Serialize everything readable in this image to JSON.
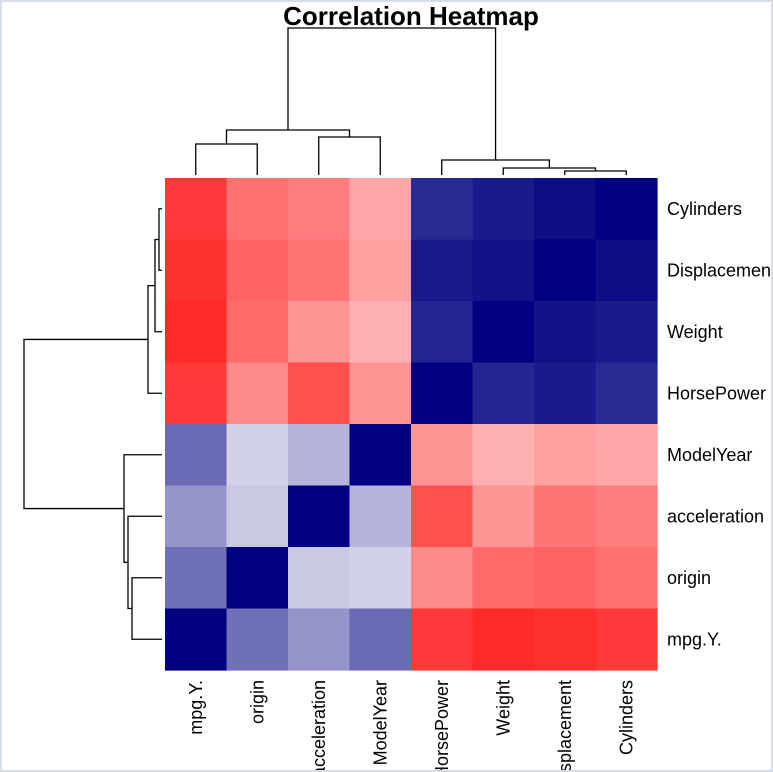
{
  "chart_data": {
    "type": "heatmap",
    "title": "Correlation Heatmap",
    "rows": [
      "Cylinders",
      "Displacement",
      "Weight",
      "HorsePower",
      "ModelYear",
      "acceleration",
      "origin",
      "mpg.Y."
    ],
    "columns": [
      "mpg.Y.",
      "origin",
      "acceleration",
      "ModelYear",
      "HorsePower",
      "Weight",
      "Displacement",
      "Cylinders"
    ],
    "values": [
      [
        -0.78,
        -0.56,
        -0.51,
        -0.35,
        0.84,
        0.9,
        0.95,
        1.0
      ],
      [
        -0.81,
        -0.61,
        -0.54,
        -0.37,
        0.9,
        0.93,
        1.0,
        0.95
      ],
      [
        -0.83,
        -0.58,
        -0.42,
        -0.31,
        0.86,
        1.0,
        0.93,
        0.9
      ],
      [
        -0.78,
        -0.46,
        -0.69,
        -0.42,
        1.0,
        0.86,
        0.9,
        0.84
      ],
      [
        0.58,
        0.18,
        0.29,
        1.0,
        -0.42,
        -0.31,
        -0.37,
        -0.35
      ],
      [
        0.42,
        0.21,
        1.0,
        0.29,
        -0.69,
        -0.42,
        -0.54,
        -0.51
      ],
      [
        0.56,
        1.0,
        0.21,
        0.18,
        -0.46,
        -0.58,
        -0.61,
        -0.56
      ],
      [
        1.0,
        0.56,
        0.42,
        0.58,
        -0.78,
        -0.83,
        -0.81,
        -0.78
      ]
    ],
    "color_scale": {
      "low": "#ff0000",
      "mid": "#ffffff",
      "high": "#000080",
      "range": [
        -1,
        1
      ]
    },
    "dendrograms": {
      "top": true,
      "left": true
    }
  },
  "colors": {
    "frame_border": "#d6dde9",
    "background": "#ffffff"
  }
}
